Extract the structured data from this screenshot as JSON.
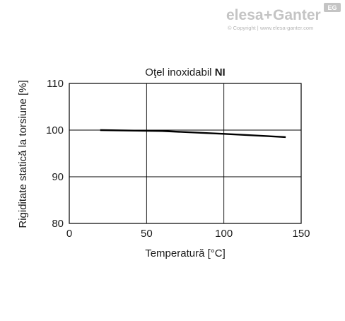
{
  "watermark": {
    "brand_left": "elesa",
    "brand_plus": "+",
    "brand_right": "Ganter",
    "badge": "EG",
    "copyright": "© Copyright | www.elesa-ganter.com"
  },
  "chart_data": {
    "type": "line",
    "title_prefix": "Oţel inoxidabil ",
    "title_bold": "NI",
    "xlabel": "Temperatură [°C]",
    "ylabel": "Rigiditate statică la torsiune [%]",
    "xlim": [
      0,
      150
    ],
    "ylim": [
      80,
      110
    ],
    "xticks": [
      0,
      50,
      100,
      150
    ],
    "yticks": [
      80,
      90,
      100,
      110
    ],
    "grid": true,
    "series": [
      {
        "x": [
          20,
          60,
          100,
          140
        ],
        "y": [
          100,
          99.8,
          99.2,
          98.5
        ],
        "color": "#000000"
      }
    ]
  }
}
